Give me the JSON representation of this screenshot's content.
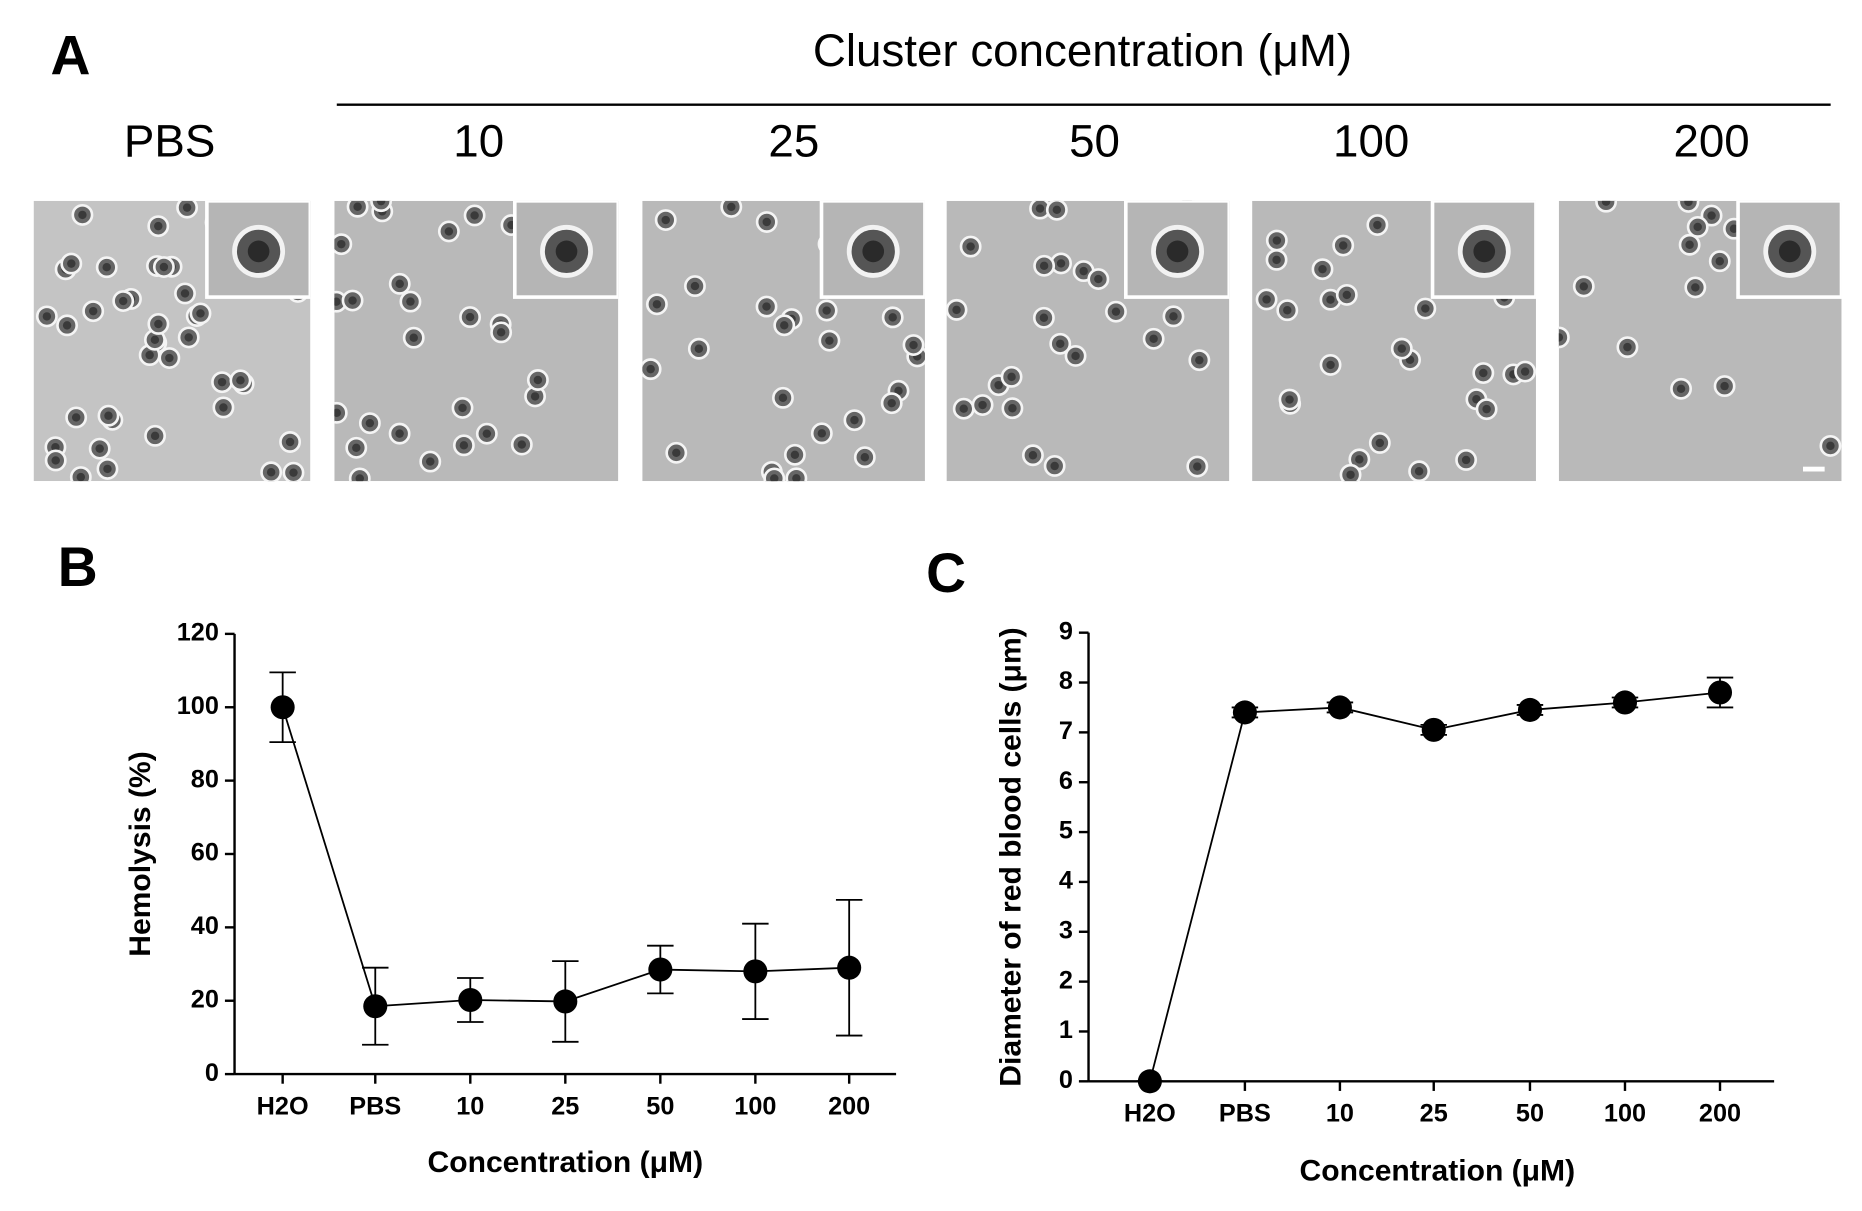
{
  "panel_a": {
    "label": "A",
    "title": "Cluster concentration (μM)",
    "columns": [
      "PBS",
      "10",
      "25",
      "50",
      "100",
      "200"
    ]
  },
  "chart_data": [
    {
      "type": "line",
      "panel_label": "B",
      "categories": [
        "H2O",
        "PBS",
        "10",
        "25",
        "50",
        "100",
        "200"
      ],
      "series": [
        {
          "color": "#000000",
          "values": [
            100,
            18.5,
            20.2,
            19.8,
            28.5,
            28,
            29
          ],
          "errors": [
            9.5,
            10.5,
            6,
            11,
            6.5,
            13,
            18.5
          ]
        }
      ],
      "ylim": [
        0,
        120
      ],
      "yticks": [
        0,
        20,
        40,
        60,
        80,
        100,
        120
      ],
      "xlabel": "Concentration (μM)",
      "ylabel": "Hemolysis (%)"
    },
    {
      "type": "line",
      "panel_label": "C",
      "categories": [
        "H2O",
        "PBS",
        "10",
        "25",
        "50",
        "100",
        "200"
      ],
      "series": [
        {
          "color": "#000000",
          "values": [
            0,
            7.4,
            7.5,
            7.05,
            7.45,
            7.6,
            7.8
          ],
          "errors": [
            0,
            0.1,
            0.1,
            0.1,
            0.1,
            0.1,
            0.3
          ]
        }
      ],
      "ylim": [
        0,
        9
      ],
      "yticks": [
        0,
        1,
        2,
        3,
        4,
        5,
        6,
        7,
        8,
        9
      ],
      "xlabel": "Concentration (μM)",
      "ylabel": "Diameter of red blood cells (μm)"
    }
  ]
}
